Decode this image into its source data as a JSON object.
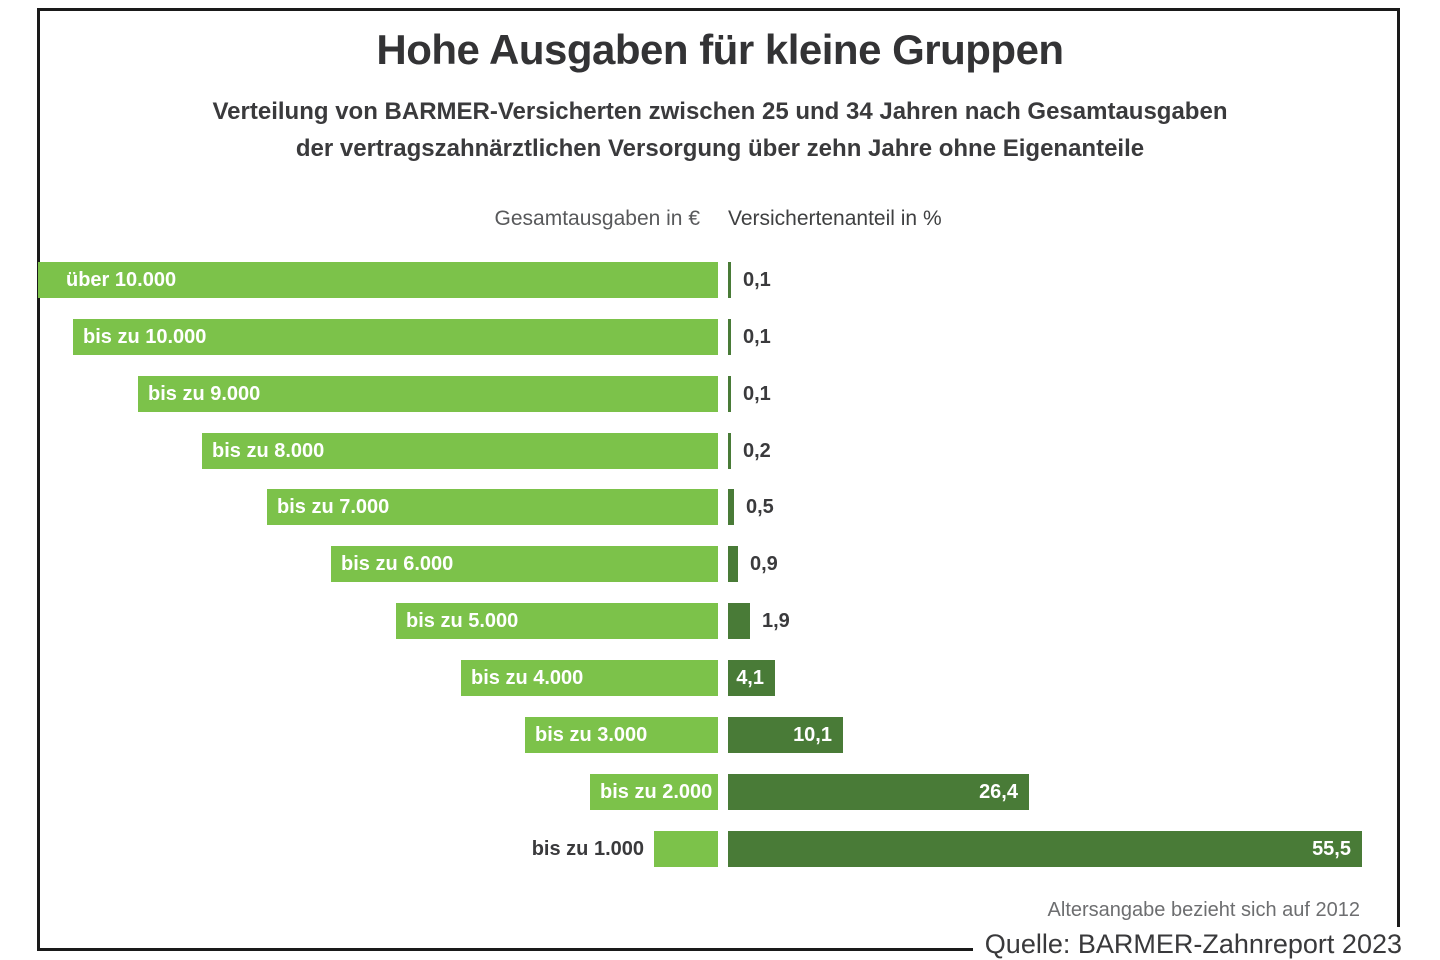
{
  "chart": {
    "title": "Hohe Ausgaben für kleine Gruppen",
    "subtitle_line1": "Verteilung von BARMER-Versicherten zwischen 25 und 34 Jahren nach Gesamtausgaben",
    "subtitle_line2": "der vertragszahnärztlichen Versorgung über zehn Jahre ohne Eigenanteile",
    "footnote": "Altersangabe bezieht sich auf 2012",
    "source": "Quelle: BARMER-Zahnreport 2023"
  },
  "chart_data": {
    "type": "bar",
    "orientation": "horizontal",
    "title": "Hohe Ausgaben für kleine Gruppen",
    "subtitle": "Verteilung von BARMER-Versicherten zwischen 25 und 34 Jahren nach Gesamtausgaben der vertragszahnärztlichen Versorgung über zehn Jahre ohne Eigenanteile",
    "left_axis_header": "Gesamtausgaben in €",
    "right_axis_header": "Versichertenanteil in %",
    "categories": [
      "über 10.000",
      "bis zu 10.000",
      "bis zu 9.000",
      "bis zu 8.000",
      "bis zu 7.000",
      "bis zu 6.000",
      "bis zu 5.000",
      "bis zu 4.000",
      "bis zu 3.000",
      "bis zu 2.000",
      "bis zu 1.000"
    ],
    "values": [
      0.1,
      0.1,
      0.1,
      0.2,
      0.5,
      0.9,
      1.9,
      4.1,
      10.1,
      26.4,
      55.5
    ],
    "value_labels": [
      "0,1",
      "0,1",
      "0,1",
      "0,2",
      "0,5",
      "0,9",
      "1,9",
      "4,1",
      "10,1",
      "26,4",
      "55,5"
    ],
    "xlim": [
      0,
      58
    ],
    "grid": false,
    "legend": false,
    "colors": {
      "category_bar": "#7cc24a",
      "value_bar": "#497b37",
      "frame": "#1a1a1a",
      "text_dark": "#3a3a3c",
      "text_gray": "#6d6e70"
    },
    "footnote": "Altersangabe bezieht sich auf 2012",
    "source": "Quelle: BARMER-Zahnreport 2023"
  }
}
